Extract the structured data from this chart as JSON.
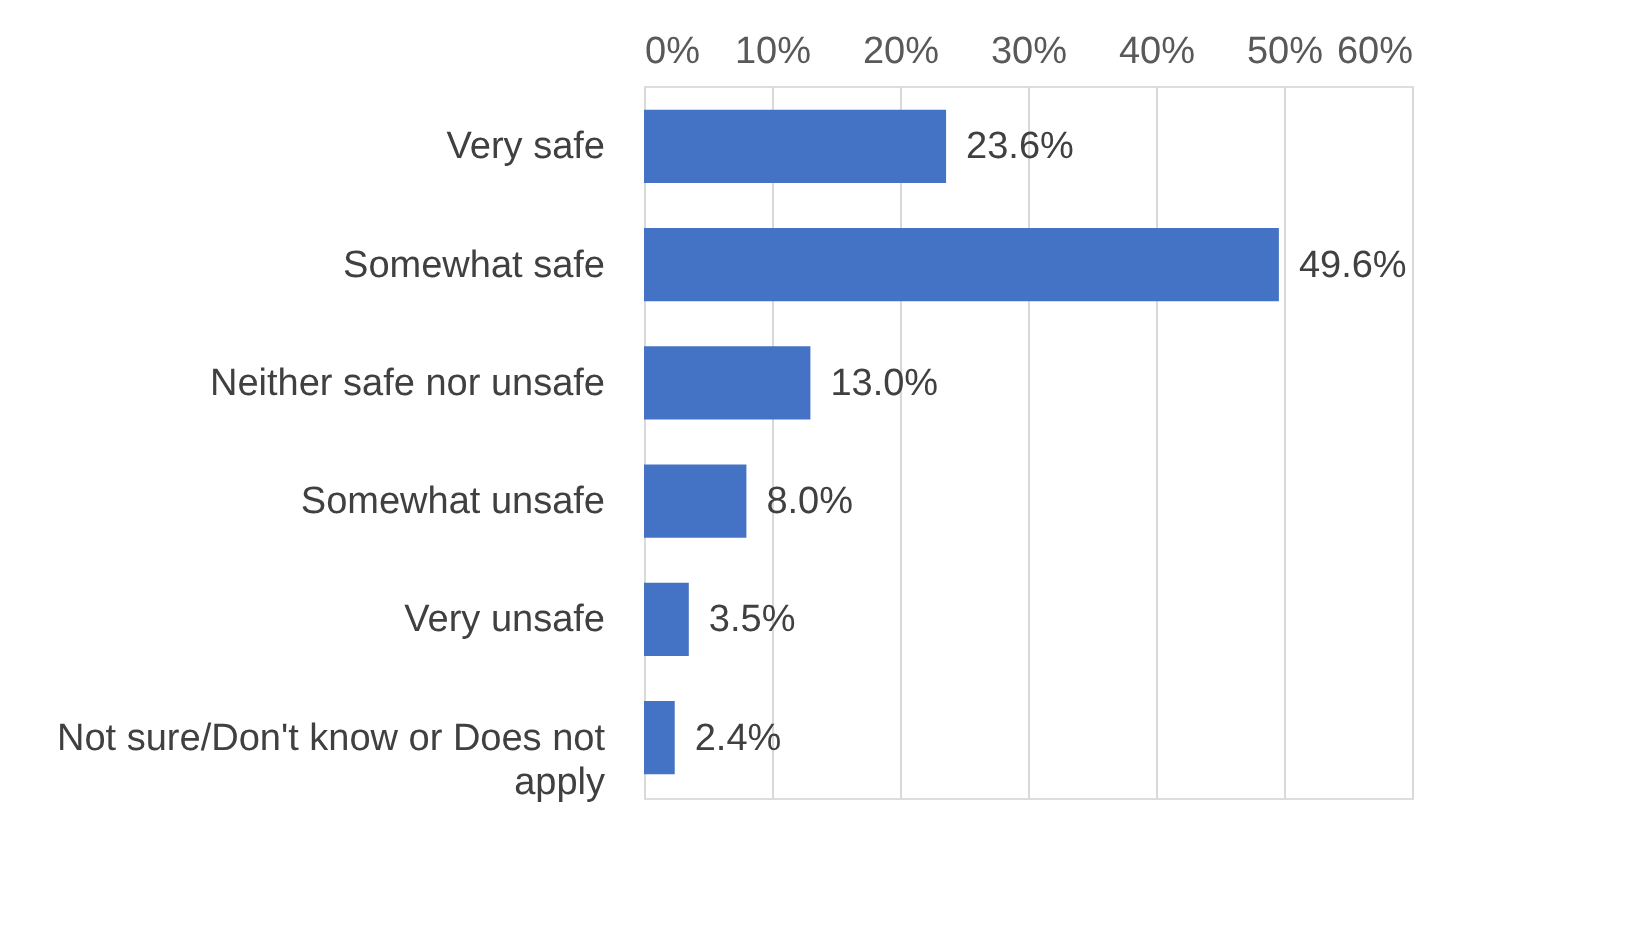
{
  "chart_data": {
    "type": "bar",
    "orientation": "horizontal",
    "categories": [
      "Very safe",
      "Somewhat safe",
      "Neither safe nor unsafe",
      "Somewhat unsafe",
      "Very unsafe",
      "Not sure/Don't know or Does not apply"
    ],
    "values": [
      23.6,
      49.6,
      13.0,
      8.0,
      3.5,
      2.4
    ],
    "value_labels": [
      "23.6%",
      "49.6%",
      "13.0%",
      "8.0%",
      "3.5%",
      "2.4%"
    ],
    "color": "#4472c4",
    "xlim": [
      0,
      60
    ],
    "xticks": [
      {
        "value": 0,
        "label": "0%"
      },
      {
        "value": 10,
        "label": "10%"
      },
      {
        "value": 20,
        "label": "20%"
      },
      {
        "value": 30,
        "label": "30%"
      },
      {
        "value": 40,
        "label": "40%"
      },
      {
        "value": 50,
        "label": "50%"
      },
      {
        "value": 60,
        "label": "60%"
      }
    ],
    "grid": "x"
  }
}
